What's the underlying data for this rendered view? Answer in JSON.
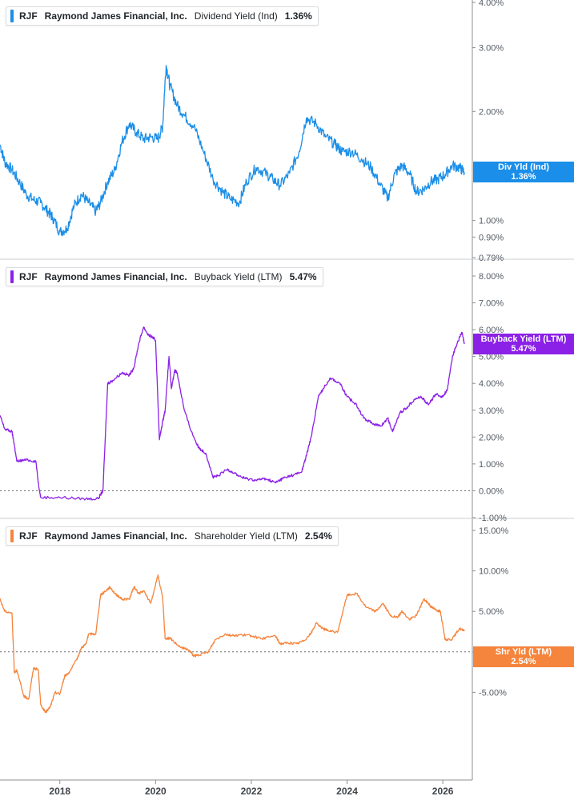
{
  "colors": {
    "dividend": "#1a8ee8",
    "buyback": "#8b21e6",
    "shareholder": "#f5843c",
    "axis": "#8c8f93",
    "zero_line": "#6b6f74"
  },
  "panels": [
    {
      "ticker": "RJF",
      "company": "Raymond James Financial, Inc.",
      "metric": "Dividend Yield (Ind)",
      "value": "1.36%",
      "tag_label": "Div Yld (Ind)",
      "tag_value": "1.36%"
    },
    {
      "ticker": "RJF",
      "company": "Raymond James Financial, Inc.",
      "metric": "Buyback Yield (LTM)",
      "value": "5.47%",
      "tag_label": "Buyback Yield (LTM)",
      "tag_value": "5.47%"
    },
    {
      "ticker": "RJF",
      "company": "Raymond James Financial, Inc.",
      "metric": "Shareholder Yield (LTM)",
      "value": "2.54%",
      "tag_label": "Shr Yld (LTM)",
      "tag_value": "2.54%"
    }
  ],
  "chart_data": [
    {
      "type": "line",
      "title": "Dividend Yield (Ind)",
      "y_scale": "log",
      "ylim": [
        0.79,
        4.0
      ],
      "y_ticks": [
        "4.00%",
        "3.00%",
        "2.00%",
        "1.00%",
        "0.90%",
        "0.79%"
      ],
      "y_tick_values": [
        4.0,
        3.0,
        2.0,
        1.0,
        0.9,
        0.79
      ],
      "xlim": [
        2016.75,
        2026.6
      ],
      "x_ticks": [
        "2018",
        "2020",
        "2022",
        "2024",
        "2026"
      ],
      "series": [
        {
          "x": [
            2016.75,
            2016.85,
            2017.0,
            2017.15,
            2017.3,
            2017.45,
            2017.6,
            2017.75,
            2017.85,
            2018.0,
            2018.15,
            2018.3,
            2018.45,
            2018.6,
            2018.75,
            2018.85,
            2019.0,
            2019.15,
            2019.3,
            2019.45,
            2019.6,
            2019.75,
            2019.9,
            2020.05,
            2020.15,
            2020.22,
            2020.3,
            2020.45,
            2020.6,
            2020.8,
            2021.0,
            2021.2,
            2021.4,
            2021.55,
            2021.75,
            2021.9,
            2022.1,
            2022.3,
            2022.45,
            2022.6,
            2022.8,
            2023.0,
            2023.15,
            2023.35,
            2023.55,
            2023.75,
            2023.9,
            2024.1,
            2024.3,
            2024.5,
            2024.7,
            2024.85,
            2025.0,
            2025.15,
            2025.3,
            2025.45,
            2025.6,
            2025.75,
            2025.9,
            2026.05,
            2026.2,
            2026.35,
            2026.45
          ],
          "y": [
            1.62,
            1.45,
            1.38,
            1.28,
            1.18,
            1.14,
            1.12,
            1.06,
            1.02,
            0.93,
            0.95,
            1.1,
            1.18,
            1.12,
            1.06,
            1.12,
            1.28,
            1.38,
            1.65,
            1.85,
            1.75,
            1.68,
            1.7,
            1.68,
            1.82,
            2.68,
            2.35,
            2.08,
            1.95,
            1.82,
            1.55,
            1.3,
            1.2,
            1.15,
            1.12,
            1.28,
            1.4,
            1.35,
            1.3,
            1.25,
            1.35,
            1.55,
            1.92,
            1.85,
            1.7,
            1.62,
            1.55,
            1.55,
            1.48,
            1.4,
            1.25,
            1.15,
            1.35,
            1.42,
            1.35,
            1.2,
            1.22,
            1.28,
            1.3,
            1.34,
            1.42,
            1.4,
            1.36
          ]
        }
      ]
    },
    {
      "type": "line",
      "title": "Buyback Yield (LTM)",
      "ylim": [
        -1.0,
        8.0
      ],
      "y_ticks": [
        "8.00%",
        "7.00%",
        "6.00%",
        "5.00%",
        "4.00%",
        "3.00%",
        "2.00%",
        "1.00%",
        "0.00%",
        "-1.00%"
      ],
      "y_tick_values": [
        8,
        7,
        6,
        5,
        4,
        3,
        2,
        1,
        0,
        -1
      ],
      "xlim": [
        2016.75,
        2026.6
      ],
      "x_ticks": [
        "2018",
        "2020",
        "2022",
        "2024",
        "2026"
      ],
      "series": [
        {
          "x": [
            2016.75,
            2016.85,
            2017.0,
            2017.05,
            2017.1,
            2017.3,
            2017.5,
            2017.55,
            2017.6,
            2018.0,
            2018.5,
            2018.8,
            2018.9,
            2019.0,
            2019.1,
            2019.3,
            2019.45,
            2019.55,
            2019.65,
            2019.75,
            2019.85,
            2019.95,
            2020.0,
            2020.08,
            2020.15,
            2020.2,
            2020.28,
            2020.33,
            2020.4,
            2020.45,
            2020.6,
            2020.75,
            2020.9,
            2021.05,
            2021.2,
            2021.3,
            2021.5,
            2021.6,
            2021.8,
            2021.9,
            2022.1,
            2022.3,
            2022.5,
            2022.6,
            2022.7,
            2022.9,
            2023.05,
            2023.15,
            2023.25,
            2023.4,
            2023.5,
            2023.65,
            2023.85,
            2024.0,
            2024.2,
            2024.35,
            2024.55,
            2024.7,
            2024.85,
            2024.95,
            2025.1,
            2025.25,
            2025.4,
            2025.55,
            2025.7,
            2025.85,
            2026.0,
            2026.1,
            2026.2,
            2026.3,
            2026.4,
            2026.45
          ],
          "y": [
            2.8,
            2.3,
            2.2,
            1.7,
            1.1,
            1.15,
            1.1,
            0.3,
            -0.25,
            -0.25,
            -0.3,
            -0.3,
            0.0,
            4.0,
            4.1,
            4.4,
            4.3,
            4.6,
            5.5,
            6.1,
            5.8,
            5.7,
            5.6,
            1.9,
            2.6,
            3.0,
            5.0,
            3.8,
            4.5,
            4.4,
            3.0,
            2.2,
            1.6,
            1.4,
            0.5,
            0.55,
            0.8,
            0.7,
            0.5,
            0.45,
            0.4,
            0.45,
            0.3,
            0.4,
            0.5,
            0.6,
            0.7,
            1.3,
            2.0,
            3.5,
            3.8,
            4.2,
            4.0,
            3.5,
            3.2,
            2.7,
            2.5,
            2.4,
            2.7,
            2.2,
            2.9,
            3.1,
            3.4,
            3.5,
            3.2,
            3.6,
            3.5,
            3.8,
            5.0,
            5.5,
            5.9,
            5.47
          ]
        }
      ]
    },
    {
      "type": "line",
      "title": "Shareholder Yield (LTM)",
      "ylim": [
        -10.0,
        15.0
      ],
      "y_ticks": [
        "15.00%",
        "10.00%",
        "5.00%",
        "0.00%",
        "-5.00%"
      ],
      "y_tick_values": [
        15,
        10,
        5,
        0,
        -5
      ],
      "xlim": [
        2016.75,
        2026.6
      ],
      "x_ticks": [
        "2018",
        "2020",
        "2022",
        "2024",
        "2026"
      ],
      "series": [
        {
          "x": [
            2016.75,
            2016.85,
            2017.0,
            2017.05,
            2017.1,
            2017.25,
            2017.35,
            2017.45,
            2017.55,
            2017.6,
            2017.7,
            2017.8,
            2017.9,
            2018.0,
            2018.1,
            2018.2,
            2018.35,
            2018.45,
            2018.55,
            2018.6,
            2018.75,
            2018.85,
            2018.95,
            2019.05,
            2019.15,
            2019.3,
            2019.45,
            2019.55,
            2019.65,
            2019.75,
            2019.9,
            2020.05,
            2020.15,
            2020.2,
            2020.3,
            2020.35,
            2020.55,
            2020.7,
            2020.8,
            2020.9,
            2021.1,
            2021.25,
            2021.45,
            2021.6,
            2021.8,
            2022.0,
            2022.2,
            2022.5,
            2022.6,
            2022.75,
            2022.95,
            2023.1,
            2023.25,
            2023.35,
            2023.5,
            2023.6,
            2023.8,
            2024.0,
            2024.2,
            2024.4,
            2024.6,
            2024.75,
            2024.9,
            2025.05,
            2025.15,
            2025.3,
            2025.45,
            2025.6,
            2025.7,
            2025.75,
            2025.85,
            2025.95,
            2026.05,
            2026.2,
            2026.35,
            2026.45
          ],
          "y": [
            6.5,
            5.0,
            4.8,
            -2.5,
            -2.3,
            -5.5,
            -5.8,
            -2.0,
            -2.2,
            -6.5,
            -7.5,
            -6.8,
            -5.0,
            -5.2,
            -3.0,
            -2.5,
            -1.0,
            0.5,
            1.0,
            2.2,
            2.2,
            7.0,
            7.5,
            8.0,
            7.2,
            6.5,
            6.5,
            8.0,
            7.2,
            7.5,
            6.0,
            9.5,
            6.5,
            1.6,
            1.7,
            1.4,
            0.5,
            0.2,
            -0.5,
            -0.4,
            0.0,
            1.5,
            2.2,
            2.0,
            2.1,
            2.0,
            1.6,
            2.0,
            1.0,
            1.1,
            1.0,
            1.4,
            2.3,
            3.5,
            2.9,
            2.6,
            2.4,
            7.0,
            7.2,
            5.5,
            5.0,
            6.0,
            4.5,
            4.2,
            5.0,
            4.0,
            4.5,
            6.5,
            6.0,
            5.6,
            5.2,
            5.0,
            1.5,
            1.6,
            2.9,
            2.54
          ]
        }
      ]
    }
  ]
}
